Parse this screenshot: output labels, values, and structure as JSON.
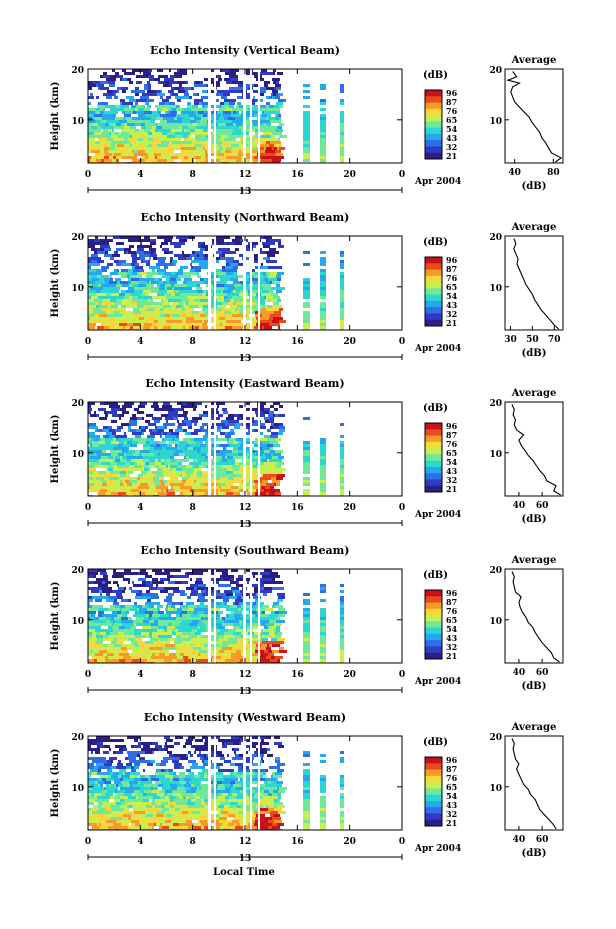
{
  "figure": {
    "xlabel": "Local Time",
    "date_label": "Apr 2004",
    "day_label": "13",
    "xticks": [
      "0",
      "4",
      "8",
      "12",
      "16",
      "20",
      "0"
    ],
    "ylabel": "Height (km)",
    "yticks": [
      "20",
      "10"
    ],
    "colorbar_label": "(dB)",
    "colorbar_ticks": [
      "96",
      "87",
      "76",
      "65",
      "54",
      "43",
      "32",
      "21"
    ],
    "colorbar_colors": [
      "#2a1f86",
      "#2f3bc2",
      "#2f6ee8",
      "#25a8ee",
      "#2ed6d0",
      "#6fe89a",
      "#c6ef52",
      "#f4d83c",
      "#f89a2a",
      "#ea4a1c",
      "#c8121a"
    ],
    "avg_title": "Average",
    "avg_ylabel": "(dB)"
  },
  "chart_data": [
    {
      "type": "heatmap",
      "title": "Echo Intensity (Vertical Beam)",
      "xlabel": "Local Time",
      "ylabel": "Height (km)",
      "xlim": [
        0,
        24
      ],
      "ylim": [
        1.5,
        20
      ],
      "zlim": [
        21,
        96
      ],
      "profile": {
        "title": "Average",
        "xticks": [
          "40",
          "80"
        ],
        "xlim": [
          30,
          90
        ],
        "height": [
          1.7,
          2.5,
          3.5,
          4.5,
          5.5,
          6.5,
          7.5,
          8.5,
          9.5,
          10.5,
          11.5,
          12.5,
          13.5,
          14.5,
          15.5,
          16.5,
          17.2,
          17.8,
          18.5,
          19.5
        ],
        "db": [
          82,
          88,
          78,
          75,
          72,
          68,
          66,
          62,
          58,
          55,
          50,
          45,
          40,
          38,
          36,
          38,
          45,
          33,
          42,
          38
        ]
      }
    },
    {
      "type": "heatmap",
      "title": "Echo Intensity (Northward Beam)",
      "xlabel": "Local Time",
      "ylabel": "Height (km)",
      "xlim": [
        0,
        24
      ],
      "ylim": [
        1.5,
        20
      ],
      "zlim": [
        21,
        96
      ],
      "profile": {
        "title": "Average",
        "xticks": [
          "30",
          "50",
          "70"
        ],
        "xlim": [
          25,
          78
        ],
        "height": [
          1.7,
          2.5,
          3.5,
          4.5,
          5.5,
          6.5,
          7.5,
          8.5,
          9.5,
          10.5,
          11.5,
          12.5,
          13.5,
          14.5,
          15.5,
          16.5,
          17.5,
          18.5,
          19.5
        ],
        "db": [
          74,
          70,
          66,
          62,
          58,
          55,
          52,
          50,
          47,
          44,
          42,
          40,
          38,
          36,
          37,
          35,
          33,
          35,
          33
        ]
      }
    },
    {
      "type": "heatmap",
      "title": "Echo Intensity (Eastward Beam)",
      "xlabel": "Local Time",
      "ylabel": "Height (km)",
      "xlim": [
        0,
        24
      ],
      "ylim": [
        1.5,
        20
      ],
      "zlim": [
        21,
        96
      ],
      "profile": {
        "title": "Average",
        "xticks": [
          "40",
          "60"
        ],
        "xlim": [
          28,
          78
        ],
        "height": [
          1.7,
          2.5,
          3.5,
          4.5,
          5.5,
          6.5,
          7.5,
          8.5,
          9.5,
          10.5,
          11.5,
          12.5,
          13.5,
          14.5,
          15.5,
          16.5,
          17.5,
          18.5,
          19.5
        ],
        "db": [
          76,
          70,
          72,
          64,
          62,
          58,
          55,
          52,
          48,
          45,
          42,
          40,
          44,
          38,
          36,
          37,
          35,
          36,
          34
        ]
      }
    },
    {
      "type": "heatmap",
      "title": "Echo Intensity (Southward Beam)",
      "xlabel": "Local Time",
      "ylabel": "Height (km)",
      "xlim": [
        0,
        24
      ],
      "ylim": [
        1.5,
        20
      ],
      "zlim": [
        21,
        96
      ],
      "profile": {
        "title": "Average",
        "xticks": [
          "40",
          "60"
        ],
        "xlim": [
          28,
          78
        ],
        "height": [
          1.7,
          2.5,
          3.5,
          4.5,
          5.5,
          6.5,
          7.5,
          8.5,
          9.5,
          10.5,
          11.5,
          12.5,
          13.5,
          14.5,
          15.5,
          16.5,
          17.5,
          18.5,
          19.5
        ],
        "db": [
          75,
          70,
          68,
          64,
          60,
          57,
          54,
          52,
          48,
          46,
          43,
          41,
          40,
          42,
          37,
          36,
          35,
          36,
          34
        ]
      }
    },
    {
      "type": "heatmap",
      "title": "Echo Intensity (Westward Beam)",
      "xlabel": "Local Time",
      "ylabel": "Height (km)",
      "xlim": [
        0,
        24
      ],
      "ylim": [
        1.5,
        20
      ],
      "zlim": [
        21,
        96
      ],
      "profile": {
        "title": "Average",
        "xticks": [
          "40",
          "60"
        ],
        "xlim": [
          28,
          78
        ],
        "height": [
          1.7,
          2.5,
          3.5,
          4.5,
          5.5,
          6.5,
          7.5,
          8.5,
          9.5,
          10.5,
          11.5,
          12.5,
          13.5,
          14.5,
          15.5,
          16.5,
          17.5,
          18.5,
          19.5
        ],
        "db": [
          72,
          70,
          66,
          62,
          58,
          56,
          54,
          50,
          48,
          44,
          42,
          40,
          38,
          40,
          37,
          36,
          35,
          36,
          34
        ]
      }
    }
  ]
}
